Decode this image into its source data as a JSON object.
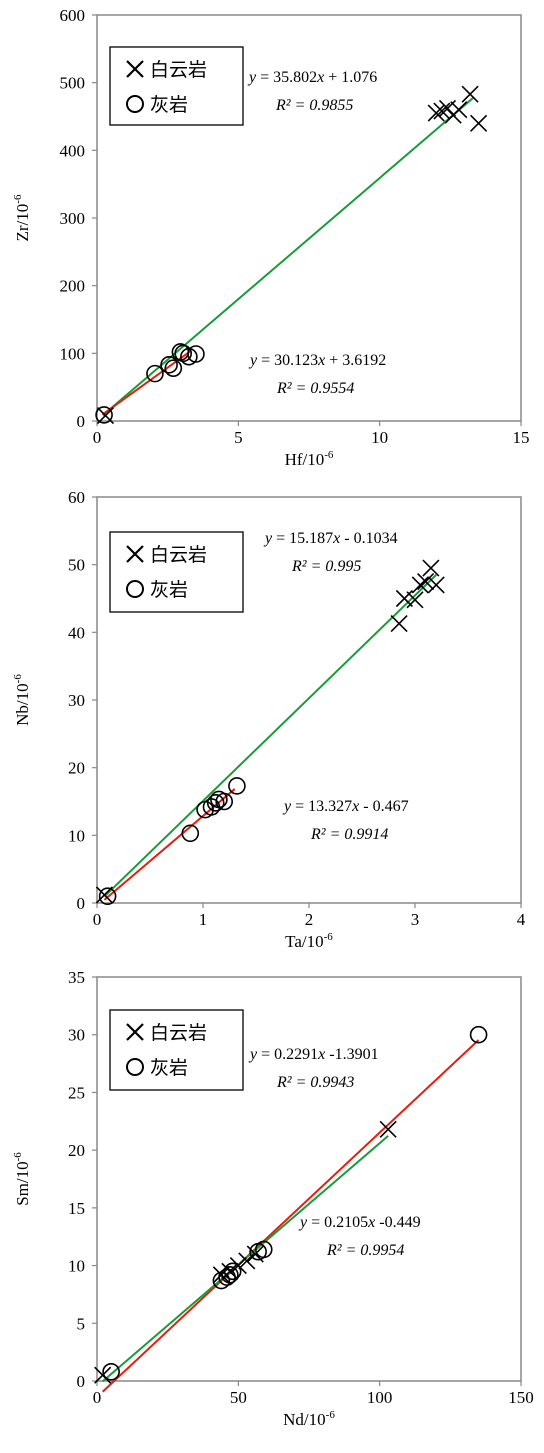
{
  "colors": {
    "dolomite_fit": "#1a9a3a",
    "limestone_fit": "#e02010",
    "marker": "#000000",
    "axis": "#888888"
  },
  "chart_data": [
    {
      "type": "scatter",
      "xlabel": "Hf/10",
      "ylabel": "Zr/10",
      "label_exponent": "-6",
      "xlim": [
        0,
        15
      ],
      "ylim": [
        0,
        600
      ],
      "xticks": [
        "0",
        "5",
        "10",
        "15"
      ],
      "yticks": [
        "0",
        "100",
        "200",
        "300",
        "400",
        "500",
        "600"
      ],
      "grid": false,
      "legend": {
        "position": "top-left",
        "dolomite": "白云岩",
        "limestone": "灰岩"
      },
      "series": [
        {
          "name": "白云岩",
          "marker": "x",
          "points": [
            [
              0.3,
              8
            ],
            [
              12.0,
              455
            ],
            [
              12.2,
              458
            ],
            [
              12.4,
              462
            ],
            [
              12.6,
              452
            ],
            [
              12.8,
              460
            ],
            [
              13.2,
              483
            ],
            [
              13.5,
              440
            ]
          ]
        },
        {
          "name": "灰岩",
          "marker": "o",
          "points": [
            [
              0.25,
              9
            ],
            [
              2.05,
              70
            ],
            [
              2.55,
              83
            ],
            [
              2.7,
              78
            ],
            [
              2.95,
              102
            ],
            [
              3.05,
              100
            ],
            [
              3.25,
              95
            ],
            [
              3.5,
              99
            ]
          ]
        }
      ],
      "fits": [
        {
          "series": "白云岩",
          "eq_prefix": "y",
          "eq_slope": "35.802",
          "eq_var": "x",
          "eq_tail": "+ 1.076",
          "r2_label": "R² = 0.9855",
          "x_range": [
            0.2,
            13.3
          ],
          "slope": 35.802,
          "intercept": 1.076
        },
        {
          "series": "灰岩",
          "eq_prefix": "y",
          "eq_slope": "30.123",
          "eq_var": "x",
          "eq_tail": "+ 3.6192",
          "r2_label": "R² = 0.9554",
          "x_range": [
            0.2,
            3.3
          ],
          "slope": 30.123,
          "intercept": 3.6192
        }
      ]
    },
    {
      "type": "scatter",
      "xlabel": "Ta/10",
      "ylabel": "Nb/10",
      "label_exponent": "-6",
      "xlim": [
        0,
        4
      ],
      "ylim": [
        0,
        60
      ],
      "xticks": [
        "0",
        "1",
        "2",
        "3",
        "4"
      ],
      "yticks": [
        "0",
        "10",
        "20",
        "30",
        "40",
        "50",
        "60"
      ],
      "grid": false,
      "legend": {
        "position": "top-left",
        "dolomite": "白云岩",
        "limestone": "灰岩"
      },
      "series": [
        {
          "name": "白云岩",
          "marker": "x",
          "points": [
            [
              0.07,
              1.2
            ],
            [
              2.85,
              41.3
            ],
            [
              2.9,
              45.0
            ],
            [
              3.0,
              44.8
            ],
            [
              3.05,
              47.0
            ],
            [
              3.1,
              47.5
            ],
            [
              3.15,
              49.5
            ],
            [
              3.2,
              47.0
            ]
          ]
        },
        {
          "name": "灰岩",
          "marker": "o",
          "points": [
            [
              0.1,
              1.0
            ],
            [
              0.88,
              10.3
            ],
            [
              1.02,
              13.8
            ],
            [
              1.08,
              14.2
            ],
            [
              1.12,
              14.8
            ],
            [
              1.15,
              15.3
            ],
            [
              1.2,
              15.0
            ],
            [
              1.32,
              17.3
            ]
          ]
        }
      ],
      "fits": [
        {
          "series": "白云岩",
          "eq_prefix": "y",
          "eq_slope": "15.187",
          "eq_var": "x",
          "eq_tail": "- 0.1034",
          "r2_label": "R² = 0.995",
          "x_range": [
            0.07,
            3.2
          ],
          "slope": 15.187,
          "intercept": -0.1034
        },
        {
          "series": "灰岩",
          "eq_prefix": "y",
          "eq_slope": "13.327",
          "eq_var": "x",
          "eq_tail": "- 0.467",
          "r2_label": "R² = 0.9914",
          "x_range": [
            0.07,
            1.3
          ],
          "slope": 13.327,
          "intercept": -0.467
        }
      ]
    },
    {
      "type": "scatter",
      "xlabel": "Nd/10",
      "ylabel": "Sm/10",
      "label_exponent": "-6",
      "xlim": [
        0,
        150
      ],
      "ylim": [
        0,
        35
      ],
      "xticks": [
        "0",
        "50",
        "100",
        "150"
      ],
      "yticks": [
        "0",
        "5",
        "10",
        "15",
        "20",
        "25",
        "30",
        "35"
      ],
      "grid": false,
      "legend": {
        "position": "top-left",
        "dolomite": "白云岩",
        "limestone": "灰岩"
      },
      "series": [
        {
          "name": "白云岩",
          "marker": "x",
          "points": [
            [
              2,
              0.5
            ],
            [
              44,
              9.2
            ],
            [
              47,
              9.5
            ],
            [
              50,
              10.0
            ],
            [
              53,
              10.4
            ],
            [
              56,
              11.0
            ],
            [
              103,
              21.8
            ]
          ]
        },
        {
          "name": "灰岩",
          "marker": "o",
          "points": [
            [
              5,
              0.8
            ],
            [
              44,
              8.7
            ],
            [
              46,
              9.0
            ],
            [
              47,
              9.2
            ],
            [
              48,
              9.5
            ],
            [
              57,
              11.2
            ],
            [
              59,
              11.4
            ],
            [
              135,
              30.0
            ]
          ]
        }
      ],
      "fits": [
        {
          "series": "灰岩",
          "eq_prefix": "y",
          "eq_slope": "0.2291",
          "eq_var": "x",
          "eq_tail": "-1.3901",
          "r2_label": "R² = 0.9943",
          "x_range": [
            2,
            135
          ],
          "slope": 0.2291,
          "intercept": -1.3901
        },
        {
          "series": "白云岩",
          "eq_prefix": "y",
          "eq_slope": "0.2105",
          "eq_var": "x",
          "eq_tail": "-0.449",
          "r2_label": "R² = 0.9954",
          "x_range": [
            2,
            103
          ],
          "slope": 0.2105,
          "intercept": -0.449
        }
      ]
    }
  ]
}
